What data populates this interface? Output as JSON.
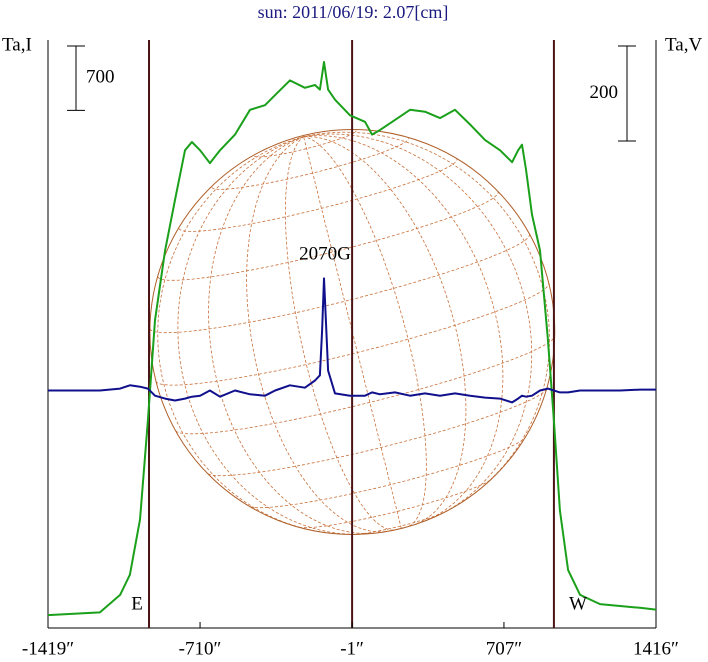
{
  "chart_data": {
    "type": "line",
    "title": "sun: 2011/06/19: 2.07[cm]",
    "x": [
      -1419,
      -1177,
      -1083,
      -1037,
      -990,
      -953,
      -920,
      -873,
      -827,
      -780,
      -748,
      -710,
      -664,
      -617,
      -547,
      -477,
      -407,
      -360,
      -291,
      -221,
      -174,
      -151,
      -141,
      -132,
      -123,
      -113,
      -81,
      -11,
      59,
      92,
      129,
      199,
      269,
      339,
      409,
      479,
      549,
      619,
      689,
      745,
      773,
      791,
      810,
      838,
      875,
      912,
      940,
      968,
      1006,
      1062,
      1155,
      1248,
      1341,
      1416
    ],
    "series": [
      {
        "name": "Ta,I",
        "color": "#1aa01a",
        "axis": "y",
        "values": [
          140,
          170,
          360,
          580,
          1180,
          2260,
          3350,
          4110,
          4660,
          5200,
          5290,
          5200,
          5060,
          5200,
          5370,
          5640,
          5690,
          5800,
          5960,
          5880,
          5910,
          5860,
          6020,
          6160,
          6020,
          5860,
          5750,
          5580,
          5510,
          5370,
          5420,
          5530,
          5640,
          5620,
          5550,
          5640,
          5480,
          5310,
          5200,
          5070,
          5200,
          5260,
          4990,
          4500,
          4110,
          3140,
          2260,
          1280,
          630,
          360,
          260,
          240,
          220,
          200
        ]
      },
      {
        "name": "Ta,V",
        "color": "#10108c",
        "axis": "y2",
        "values": [
          0,
          0,
          4,
          11,
          8,
          4,
          -11,
          -17,
          -21,
          -17,
          -13,
          -11,
          0,
          -13,
          0,
          -8,
          -11,
          0,
          11,
          6,
          21,
          32,
          126,
          236,
          147,
          42,
          -6,
          -11,
          -11,
          -4,
          -8,
          -4,
          -11,
          -6,
          -11,
          -6,
          -11,
          -15,
          -17,
          -25,
          -17,
          -11,
          -13,
          -11,
          0,
          4,
          0,
          -4,
          -4,
          0,
          0,
          0,
          2,
          2
        ]
      }
    ],
    "xlim": [
      -1419,
      1416
    ],
    "xticks": [
      {
        "value": -1419,
        "label": "-1419″"
      },
      {
        "value": -710,
        "label": "-710″"
      },
      {
        "value": -1,
        "label": "-1″"
      },
      {
        "value": 707,
        "label": "707″"
      },
      {
        "value": 1416,
        "label": "1416″"
      }
    ],
    "ylim": [
      0,
      6400
    ],
    "y2lim": [
      -500,
      738
    ],
    "scale_bar_y": 700,
    "scale_bar_y2": 200,
    "vertical_lines": [
      -948,
      -1,
      940
    ],
    "solar_radius": 944,
    "annotations": [
      "E",
      "W",
      "2070G"
    ]
  }
}
